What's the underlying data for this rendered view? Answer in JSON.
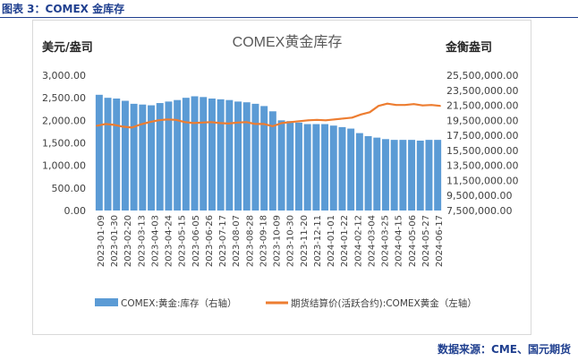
{
  "caption": "图表 3：COMEX 金库存",
  "source": "数据来源：CME、国元期货",
  "chart_data": {
    "type": "bar+line",
    "title": "COMEX黄金库存",
    "left_axis_unit": "美元/盎司",
    "right_axis_unit": "金衡盎司",
    "left_axis": {
      "min": 0,
      "max": 3000,
      "step": 500,
      "tick_labels": [
        "0.00",
        "500.00",
        "1,000.00",
        "1,500.00",
        "2,000.00",
        "2,500.00",
        "3,000.00"
      ]
    },
    "right_axis": {
      "min": 7500000,
      "max": 25500000,
      "step": 2000000,
      "tick_labels": [
        "7,500,000.00",
        "9,500,000.00",
        "11,500,000.00",
        "13,500,000.00",
        "15,500,000.00",
        "17,500,000.00",
        "19,500,000.00",
        "21,500,000.00",
        "23,500,000.00",
        "25,500,000.00"
      ]
    },
    "x_tick_labels": [
      "2023-01-09",
      "2023-01-30",
      "2023-02-20",
      "2023-03-13",
      "2023-04-03",
      "2023-04-24",
      "2023-05-15",
      "2023-06-05",
      "2023-06-26",
      "2023-07-17",
      "2023-08-07",
      "2023-08-28",
      "2023-09-18",
      "2023-10-09",
      "2023-10-30",
      "2023-11-20",
      "2023-12-11",
      "2024-01-01",
      "2024-01-22",
      "2024-02-12",
      "2024-03-04",
      "2024-03-25",
      "2024-04-15",
      "2024-05-06",
      "2024-05-27",
      "2024-06-17"
    ],
    "series": [
      {
        "name": "COMEX:黄金:库存（右轴）",
        "type": "bar",
        "axis": "right",
        "color": "#5b9bd5",
        "values": [
          22900000,
          22500000,
          22400000,
          22100000,
          21700000,
          21600000,
          21500000,
          21800000,
          22000000,
          22200000,
          22500000,
          22700000,
          22600000,
          22400000,
          22300000,
          22200000,
          22000000,
          21900000,
          21700000,
          21400000,
          20700000,
          19500000,
          19400000,
          19200000,
          19000000,
          19000000,
          19000000,
          18800000,
          18600000,
          18400000,
          17800000,
          17400000,
          17200000,
          17000000,
          16900000,
          16900000,
          16900000,
          16800000,
          16900000,
          16900000
        ]
      },
      {
        "name": "期货结算价(活跃合约):COMEX黄金（左轴）",
        "type": "line",
        "axis": "left",
        "color": "#ed7d31",
        "values": [
          1880,
          1920,
          1900,
          1860,
          1840,
          1910,
          1960,
          2000,
          2020,
          2010,
          1960,
          1940,
          1950,
          1960,
          1940,
          1930,
          1950,
          1960,
          1920,
          1920,
          1870,
          1940,
          1960,
          1980,
          2000,
          2010,
          2000,
          2020,
          2040,
          2060,
          2130,
          2180,
          2320,
          2370,
          2340,
          2340,
          2360,
          2330,
          2340,
          2320
        ]
      }
    ]
  }
}
